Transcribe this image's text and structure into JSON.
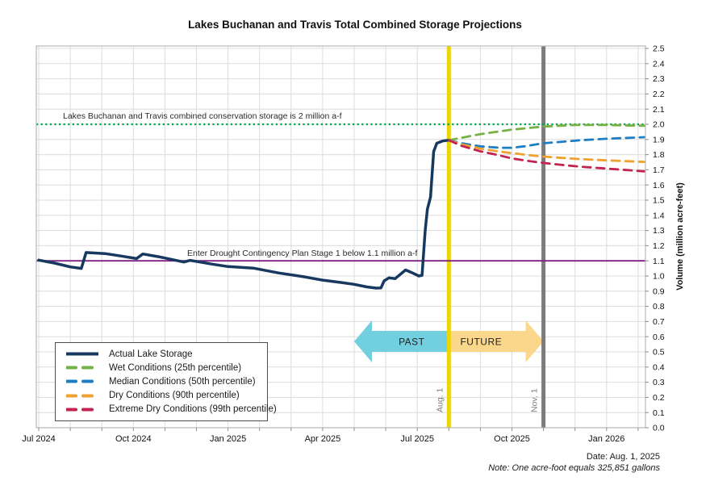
{
  "title": "Lakes Buchanan and Travis Total Combined Storage Projections",
  "footer": {
    "date": "Date: Aug. 1, 2025",
    "note": "Note: One acre-foot equals 325,851 gallons"
  },
  "y_axis": {
    "label": "Volume (million acre-feet)",
    "min": 0.0,
    "max": 2.5,
    "tick_step": 0.1
  },
  "x_axis": {
    "tick_labels": [
      "Jul 2024",
      "Oct 2024",
      "Jan 2025",
      "Apr 2025",
      "Jul 2025",
      "Oct 2025",
      "Jan 2026"
    ],
    "tick_months": [
      0,
      3,
      6,
      9,
      12,
      15,
      18
    ]
  },
  "annotations": {
    "conservation": "Lakes Buchanan and Travis combined conservation storage is 2 million a-f",
    "drought": "Enter Drought Contingency Plan Stage 1 below 1.1 million a-f"
  },
  "legend": {
    "items": [
      {
        "label": "Actual Lake Storage",
        "color": "#17395f",
        "dash": "solid"
      },
      {
        "label": "Wet Conditions (25th percentile)",
        "color": "#76b143",
        "dash": "dashed"
      },
      {
        "label": "Median Conditions (50th percentile)",
        "color": "#1e7ec2",
        "dash": "dashed"
      },
      {
        "label": "Dry Conditions (90th percentile)",
        "color": "#efa22f",
        "dash": "dashed"
      },
      {
        "label": "Extreme Dry Conditions (99th percentile)",
        "color": "#c32350",
        "dash": "dashed"
      }
    ]
  },
  "colors": {
    "grid": "#dcdcdc",
    "plot_border": "#b7b7b7",
    "conservation_line": "#00a651",
    "drought_line": "#7d2181",
    "aug1_line": "#ecd407",
    "nov1_line": "#7c7c7c",
    "past_arrow": "#72cfe0",
    "future_arrow": "#fbd78c",
    "event_label": "#7f7f7f",
    "annotation_text": "#2b2b2b"
  },
  "chart_data": {
    "type": "line",
    "x_unit": "months_after_2024-07-01",
    "x_range": [
      -0.1,
      19.2
    ],
    "ylim": [
      0.0,
      2.5
    ],
    "grid": true,
    "legend_position": "lower-left",
    "series": [
      {
        "name": "Actual Lake Storage",
        "color": "#17395f",
        "style": "solid",
        "width": 3.5,
        "points": [
          [
            0,
            1.105
          ],
          [
            0.5,
            1.085
          ],
          [
            1.0,
            1.06
          ],
          [
            1.35,
            1.05
          ],
          [
            1.5,
            1.155
          ],
          [
            2.1,
            1.148
          ],
          [
            2.6,
            1.132
          ],
          [
            3.1,
            1.115
          ],
          [
            3.3,
            1.145
          ],
          [
            3.8,
            1.127
          ],
          [
            4.6,
            1.092
          ],
          [
            4.8,
            1.103
          ],
          [
            5.5,
            1.078
          ],
          [
            6.0,
            1.062
          ],
          [
            6.8,
            1.052
          ],
          [
            7.6,
            1.02
          ],
          [
            8.4,
            0.995
          ],
          [
            9.0,
            0.973
          ],
          [
            9.6,
            0.957
          ],
          [
            10.0,
            0.945
          ],
          [
            10.4,
            0.928
          ],
          [
            10.7,
            0.92
          ],
          [
            10.85,
            0.922
          ],
          [
            10.95,
            0.968
          ],
          [
            11.1,
            0.988
          ],
          [
            11.3,
            0.983
          ],
          [
            11.63,
            1.04
          ],
          [
            11.85,
            1.02
          ],
          [
            12.05,
            1.0
          ],
          [
            12.15,
            1.005
          ],
          [
            12.25,
            1.3
          ],
          [
            12.32,
            1.44
          ],
          [
            12.42,
            1.52
          ],
          [
            12.52,
            1.82
          ],
          [
            12.62,
            1.875
          ],
          [
            12.8,
            1.89
          ],
          [
            13.0,
            1.895
          ]
        ]
      },
      {
        "name": "Wet Conditions (25th percentile)",
        "color": "#76b143",
        "style": "dashed",
        "width": 2.8,
        "points": [
          [
            13,
            1.895
          ],
          [
            13.5,
            1.915
          ],
          [
            14,
            1.935
          ],
          [
            14.5,
            1.95
          ],
          [
            15,
            1.965
          ],
          [
            15.5,
            1.975
          ],
          [
            16,
            1.985
          ],
          [
            16.5,
            1.99
          ],
          [
            17,
            1.995
          ],
          [
            18,
            1.995
          ],
          [
            19.2,
            1.99
          ]
        ]
      },
      {
        "name": "Median Conditions (50th percentile)",
        "color": "#1e7ec2",
        "style": "dashed",
        "width": 2.8,
        "points": [
          [
            13,
            1.895
          ],
          [
            13.4,
            1.875
          ],
          [
            14,
            1.855
          ],
          [
            14.6,
            1.845
          ],
          [
            15,
            1.845
          ],
          [
            15.4,
            1.855
          ],
          [
            16,
            1.875
          ],
          [
            16.6,
            1.885
          ],
          [
            17.2,
            1.895
          ],
          [
            18,
            1.905
          ],
          [
            19.2,
            1.915
          ]
        ]
      },
      {
        "name": "Dry Conditions (90th percentile)",
        "color": "#efa22f",
        "style": "dashed",
        "width": 2.8,
        "points": [
          [
            13,
            1.895
          ],
          [
            13.4,
            1.868
          ],
          [
            14,
            1.84
          ],
          [
            14.6,
            1.82
          ],
          [
            15,
            1.81
          ],
          [
            15.6,
            1.795
          ],
          [
            16,
            1.787
          ],
          [
            16.6,
            1.778
          ],
          [
            17.2,
            1.77
          ],
          [
            18,
            1.762
          ],
          [
            19.2,
            1.752
          ]
        ]
      },
      {
        "name": "Extreme Dry Conditions (99th percentile)",
        "color": "#c32350",
        "style": "dashed",
        "width": 2.8,
        "points": [
          [
            13,
            1.895
          ],
          [
            13.4,
            1.858
          ],
          [
            14,
            1.822
          ],
          [
            14.6,
            1.795
          ],
          [
            15,
            1.775
          ],
          [
            15.6,
            1.756
          ],
          [
            16,
            1.745
          ],
          [
            16.6,
            1.732
          ],
          [
            17.2,
            1.72
          ],
          [
            18,
            1.708
          ],
          [
            19.2,
            1.69
          ]
        ]
      }
    ],
    "reference_lines": [
      {
        "type": "horizontal",
        "value": 2.0,
        "color": "#00a651",
        "style": "dotted",
        "label": "Lakes Buchanan and Travis combined conservation storage is 2 million a-f"
      },
      {
        "type": "horizontal",
        "value": 1.1,
        "color": "#7d2181",
        "style": "solid",
        "label": "Enter Drought Contingency Plan Stage 1 below 1.1 million a-f"
      },
      {
        "type": "vertical",
        "month": 13,
        "color": "#ecd407",
        "style": "solid",
        "label": "Aug. 1"
      },
      {
        "type": "vertical",
        "month": 16,
        "color": "#7c7c7c",
        "style": "solid",
        "label": "Nov. 1"
      }
    ],
    "arrows": [
      {
        "label": "PAST",
        "direction": "left",
        "color": "#72cfe0",
        "from_month": 13,
        "to_month": 10
      },
      {
        "label": "FUTURE",
        "direction": "right",
        "color": "#fbd78c",
        "from_month": 13,
        "to_month": 16
      }
    ]
  }
}
